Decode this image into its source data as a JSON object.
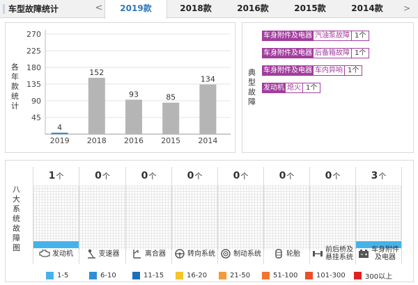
{
  "header": {
    "title": "车型故障统计",
    "prev_arrow": "<",
    "next_arrow": ">",
    "years": [
      "2019款",
      "2018款",
      "2016款",
      "2015款",
      "2014款"
    ],
    "active_year": "2019款"
  },
  "bar_panel": {
    "ylabel": [
      "各",
      "年",
      "款",
      "统",
      "计"
    ]
  },
  "chart_data": {
    "type": "bar",
    "categories": [
      "2019",
      "2018",
      "2016",
      "2015",
      "2014"
    ],
    "values": [
      4,
      152,
      93,
      85,
      134
    ],
    "data_labels": [
      "4",
      "152",
      "93",
      "85",
      "134"
    ],
    "yticks": [
      "45",
      "90",
      "135",
      "180",
      "225",
      "270"
    ],
    "ylim": [
      0,
      270
    ],
    "grid": true,
    "colors": {
      "highlight": "#2f8fd0",
      "bar": "#b5b5b5"
    },
    "title": "",
    "xlabel": "",
    "ylabel": "各年款统计"
  },
  "fault_panel": {
    "label": [
      "典",
      "型",
      "故",
      "障"
    ],
    "items": [
      {
        "category": "车身附件及电器",
        "name": "汽油泵故障",
        "count": "1个"
      },
      {
        "category": "车身附件及电器",
        "name": "后备箱故障",
        "count": "1个"
      },
      {
        "category": "车身附件及电器",
        "name": "车内异响",
        "count": "1个"
      },
      {
        "category": "发动机",
        "name": "熄火",
        "count": "1个"
      }
    ],
    "color": "#a23e9d"
  },
  "systems_panel": {
    "label": [
      "八",
      "大",
      "系",
      "统",
      "故",
      "障",
      "图"
    ],
    "unit": "个",
    "systems": [
      {
        "name": "发动机",
        "icon": "engine-icon",
        "count": "1",
        "has_bar": true
      },
      {
        "name": "变速器",
        "icon": "gear-shift-icon",
        "count": "0",
        "has_bar": false
      },
      {
        "name": "离合器",
        "icon": "clutch-icon",
        "count": "0",
        "has_bar": false
      },
      {
        "name": "转向系统",
        "icon": "steering-wheel-icon",
        "count": "0",
        "has_bar": false
      },
      {
        "name": "制动系统",
        "icon": "brake-disc-icon",
        "count": "0",
        "has_bar": false
      },
      {
        "name": "轮胎",
        "icon": "tire-icon",
        "count": "0",
        "has_bar": false
      },
      {
        "name": "前后桥及悬挂系统",
        "name_lines": [
          "前后桥及",
          "悬挂系统"
        ],
        "icon": "axle-suspension-icon",
        "count": "0",
        "has_bar": false
      },
      {
        "name": "车身附件及电器",
        "name_lines": [
          "车身附件",
          "及电器"
        ],
        "icon": "battery-icon",
        "count": "3",
        "has_bar": true
      }
    ]
  },
  "legend": [
    {
      "label": "1-5",
      "color": "#46b2ea"
    },
    {
      "label": "6-10",
      "color": "#2f8fd6"
    },
    {
      "label": "11-15",
      "color": "#1d6fb8"
    },
    {
      "label": "16-20",
      "color": "#f6c42b"
    },
    {
      "label": "21-50",
      "color": "#f39a3c"
    },
    {
      "label": "51-100",
      "color": "#f07432"
    },
    {
      "label": "101-300",
      "color": "#e9512b"
    },
    {
      "label": "300以上",
      "color": "#e02121"
    }
  ]
}
